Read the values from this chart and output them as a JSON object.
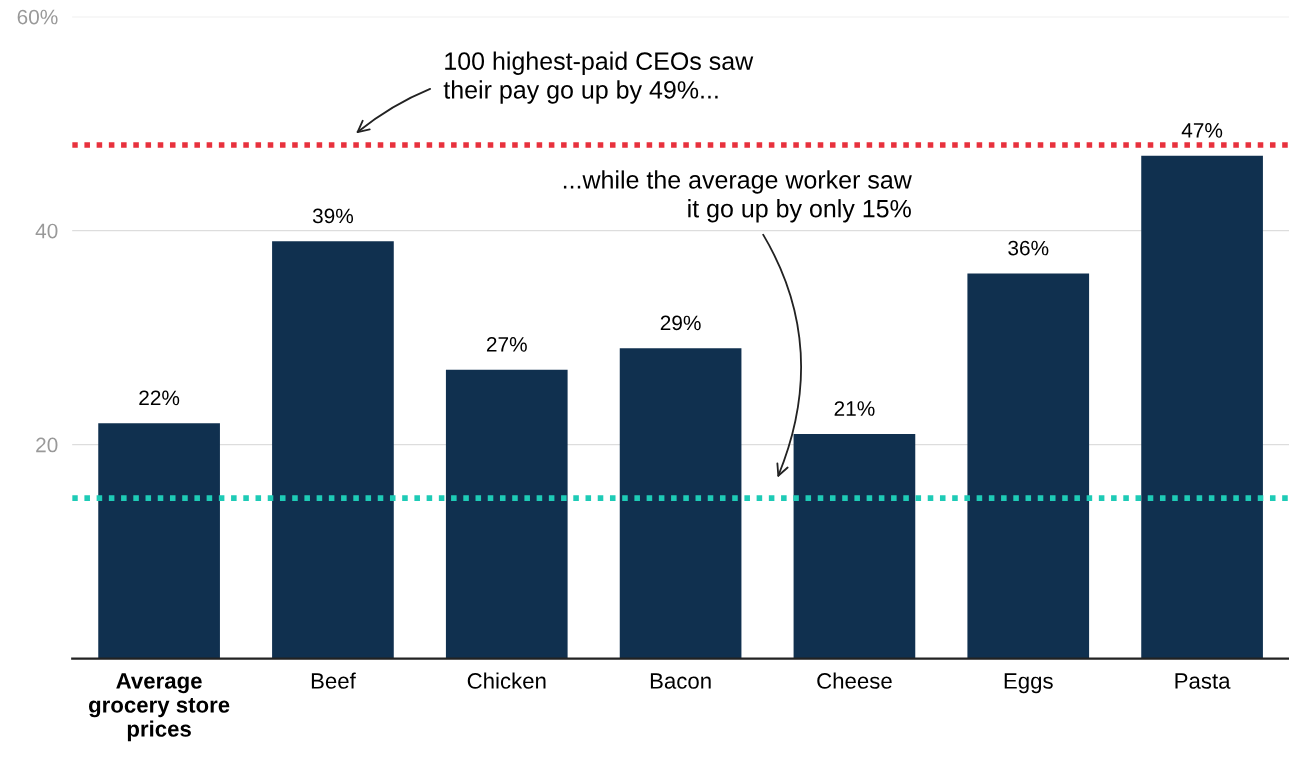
{
  "chart_data": {
    "type": "bar",
    "categories": [
      "Average grocery store prices",
      "Beef",
      "Chicken",
      "Bacon",
      "Cheese",
      "Eggs",
      "Pasta"
    ],
    "values": [
      22,
      39,
      27,
      29,
      21,
      36,
      47
    ],
    "value_labels": [
      "22%",
      "39%",
      "27%",
      "29%",
      "21%",
      "36%",
      "47%"
    ],
    "color": "#10304f",
    "ylim": [
      0,
      60
    ],
    "yticks": [
      20,
      40,
      {
        "value": 60,
        "label": "60%"
      }
    ],
    "grid": "y",
    "ref_lines": [
      {
        "axis": "y",
        "value": 48,
        "color": "#e8313d",
        "line_style": "dotted"
      },
      {
        "axis": "y",
        "value": 15,
        "color": "#1ecbb6",
        "line_style": "dotted"
      }
    ],
    "annotations": [
      "100 highest-paid CEOs saw\ntheir pay go up by 49%...",
      "...while the average worker saw\nit go up by only 15%"
    ]
  }
}
